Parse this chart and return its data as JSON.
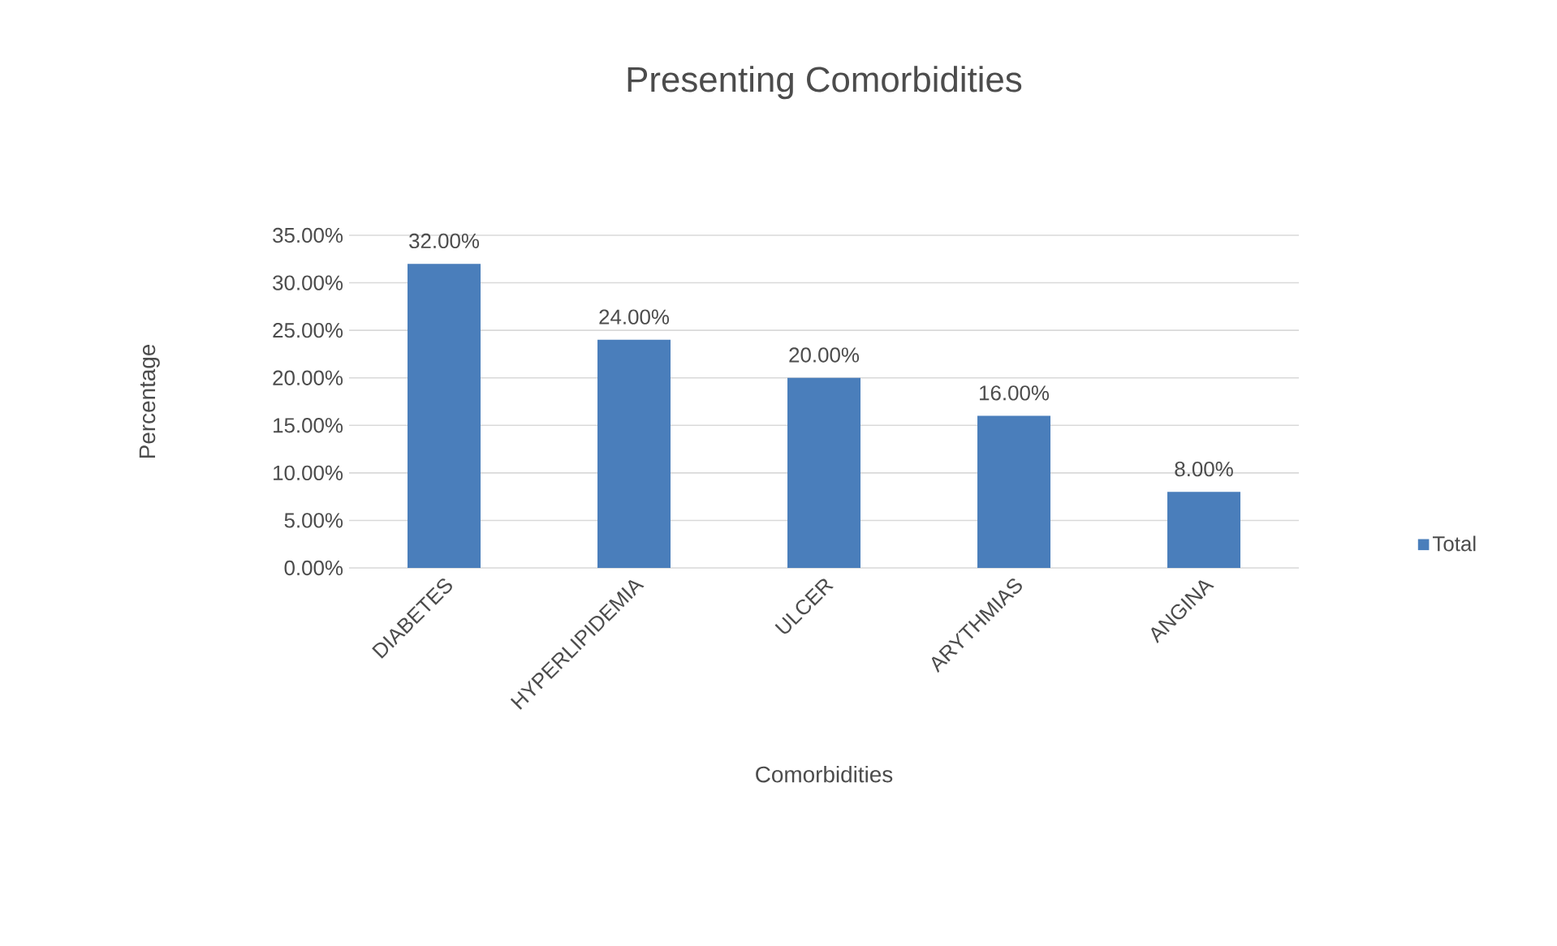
{
  "chart_data": {
    "type": "bar",
    "title": "Presenting Comorbidities",
    "xlabel": "Comorbidities",
    "ylabel": "Percentage",
    "categories": [
      "DIABETES",
      "HYPERLIPIDEMIA",
      "ULCER",
      "ARYTHMIAS",
      "ANGINA"
    ],
    "series": [
      {
        "name": "Total",
        "color": "#4a7ebb",
        "values": [
          32,
          24,
          20,
          16,
          8
        ],
        "value_labels": [
          "32.00%",
          "24.00%",
          "20.00%",
          "16.00%",
          "8.00%"
        ]
      }
    ],
    "ylim": [
      0,
      35
    ],
    "yticks": [
      {
        "value": 0,
        "label": "0.00%"
      },
      {
        "value": 5,
        "label": "5.00%"
      },
      {
        "value": 10,
        "label": "10.00%"
      },
      {
        "value": 15,
        "label": "15.00%"
      },
      {
        "value": 20,
        "label": "20.00%"
      },
      {
        "value": 25,
        "label": "25.00%"
      },
      {
        "value": 30,
        "label": "30.00%"
      },
      {
        "value": 35,
        "label": "35.00%"
      }
    ],
    "grid": "y",
    "legend": "right"
  }
}
